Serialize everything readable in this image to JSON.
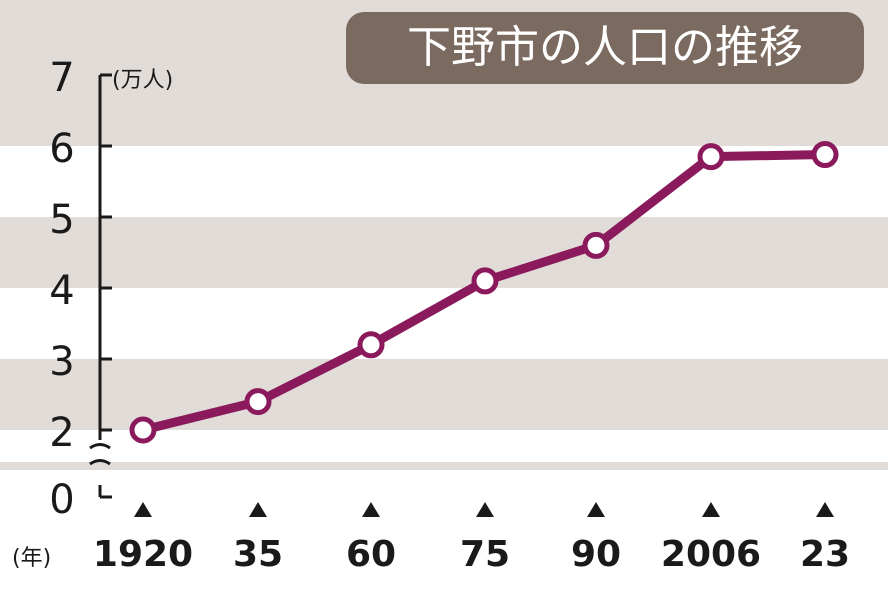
{
  "chart_data": {
    "type": "line",
    "title": "下野市の人口の推移",
    "unit_label": "(万人)",
    "x_unit_label": "(年)",
    "categories": [
      "1920",
      "35",
      "60",
      "75",
      "90",
      "2006",
      "23"
    ],
    "values": [
      2.0,
      2.4,
      3.2,
      4.1,
      4.6,
      5.85,
      5.88
    ],
    "y_ticks": [
      "0",
      "2",
      "3",
      "4",
      "5",
      "6",
      "7"
    ],
    "y_axis_break": true,
    "grid": "alternating horizontal bands",
    "colors": {
      "line": "#8a1a5c",
      "marker_fill": "#ffffff",
      "band_dark": "#e2dcd8",
      "band_light": "#ffffff",
      "title_bg": "#7b6a60",
      "title_text": "#ffffff",
      "text": "#1a1a1a"
    },
    "marker_icon": "triangle-up-icon"
  }
}
